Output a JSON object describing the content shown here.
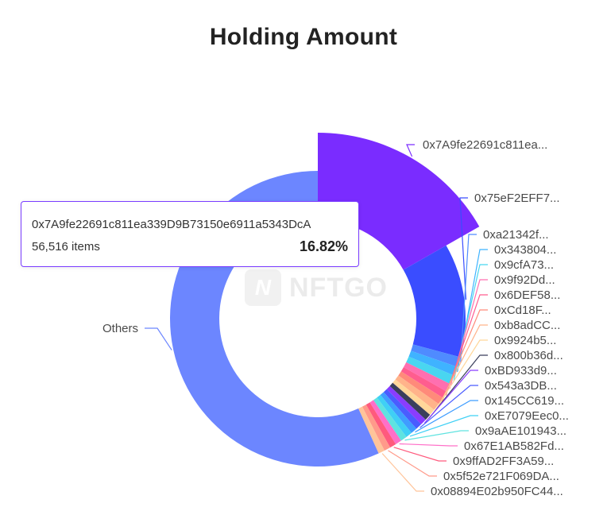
{
  "colors": {
    "others": "#6c86ff",
    "top1": "#7a2cff",
    "top2": "#3a4dff",
    "tooltip_border": "#7a3cff"
  },
  "tooltip": {
    "address": "0x7A9fe22691c811ea339D9B73150e6911a5343DcA",
    "items": "56,516 items",
    "percent": "16.82%"
  },
  "watermark": {
    "icon": "nftgo-logo-icon",
    "text": "NFTGO"
  },
  "chart_data": {
    "type": "pie",
    "variant": "donut",
    "title": "Holding Amount",
    "legend": "none",
    "slices": [
      {
        "label": "0x7A9fe22691c811ea...",
        "value": 16.82,
        "color": "#7a2cff"
      },
      {
        "label": "0x75eF2EFF7...",
        "value": 12.5,
        "color": "#3a4dff"
      },
      {
        "label": "0xa21342f...",
        "value": 1.1,
        "color": "#4f8bff"
      },
      {
        "label": "0x343804...",
        "value": 1.0,
        "color": "#3fb3ff"
      },
      {
        "label": "0x9cfA73...",
        "value": 1.0,
        "color": "#49d6f0"
      },
      {
        "label": "0x9f92Dd...",
        "value": 0.9,
        "color": "#ff6fb0"
      },
      {
        "label": "0x6DEF58...",
        "value": 0.8,
        "color": "#ff5d8f"
      },
      {
        "label": "0xCd18F...",
        "value": 0.8,
        "color": "#ff8a7a"
      },
      {
        "label": "0xb8adCC...",
        "value": 0.8,
        "color": "#ffb38a"
      },
      {
        "label": "0x9924b5...",
        "value": 0.7,
        "color": "#ffd79a"
      },
      {
        "label": "0x800b36d...",
        "value": 0.7,
        "color": "#3a3f5c"
      },
      {
        "label": "0xBD933d9...",
        "value": 0.7,
        "color": "#8a3dff"
      },
      {
        "label": "0x543a3DB...",
        "value": 0.7,
        "color": "#4a5cff"
      },
      {
        "label": "0x145CC619...",
        "value": 0.7,
        "color": "#3f9dff"
      },
      {
        "label": "0xE7079Eec0...",
        "value": 0.7,
        "color": "#3fd0f5"
      },
      {
        "label": "0x9aAE101943...",
        "value": 0.7,
        "color": "#5fe3e0"
      },
      {
        "label": "0x67E1AB582Fd...",
        "value": 0.7,
        "color": "#ff6fc8"
      },
      {
        "label": "0x9ffAD2FF3A59...",
        "value": 0.7,
        "color": "#ff5a7d"
      },
      {
        "label": "0x5f52e721F069DA...",
        "value": 0.7,
        "color": "#ff9a8a"
      },
      {
        "label": "0x08894E02b950FC44...",
        "value": 0.7,
        "color": "#ffc49a"
      },
      {
        "label": "Others",
        "value": 56.98,
        "color": "#6c86ff"
      }
    ]
  }
}
